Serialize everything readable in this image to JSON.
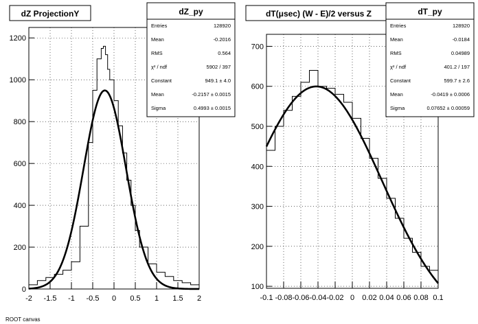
{
  "chart_data": [
    {
      "type": "line",
      "title": "dZ ProjectionY",
      "xlabel": "",
      "ylabel": "",
      "xlim": [
        -2,
        2
      ],
      "ylim": [
        0,
        1250
      ],
      "x_ticks": [
        "-2",
        "-1.5",
        "-1",
        "-0.5",
        "0",
        "0.5",
        "1",
        "1.5",
        "2"
      ],
      "y_ticks": [
        "0",
        "200",
        "400",
        "600",
        "800",
        "1000",
        "1200"
      ],
      "grid": true,
      "stats_box": {
        "name": "dZ_py",
        "rows": [
          {
            "label": "Entries",
            "value": "128920"
          },
          {
            "label": "Mean",
            "value": "-0.2016"
          },
          {
            "label": "RMS",
            "value": "0.564"
          },
          {
            "label": "χ² / ndf",
            "value": "5902 / 397"
          },
          {
            "label": "Constant",
            "value": "949.1 ± 4.0"
          },
          {
            "label": "Mean",
            "value": "-0.2157 ± 0.0015"
          },
          {
            "label": "Sigma",
            "value": "0.4993 ± 0.0015"
          }
        ]
      },
      "series": [
        {
          "kind": "histogram",
          "x": [
            -2.0,
            -1.8,
            -1.6,
            -1.4,
            -1.2,
            -1.0,
            -0.8,
            -0.6,
            -0.5,
            -0.4,
            -0.3,
            -0.25,
            -0.2,
            -0.15,
            -0.1,
            0.0,
            0.1,
            0.2,
            0.3,
            0.4,
            0.5,
            0.6,
            0.8,
            1.0,
            1.2,
            1.4,
            1.6,
            1.8,
            2.0
          ],
          "y": [
            20,
            40,
            55,
            70,
            90,
            130,
            300,
            700,
            950,
            1100,
            1150,
            1160,
            1120,
            1050,
            1000,
            900,
            780,
            650,
            520,
            400,
            280,
            200,
            120,
            80,
            60,
            40,
            30,
            20,
            15
          ]
        },
        {
          "kind": "gaussian-fit",
          "constant": 949.1,
          "mean": -0.2157,
          "sigma": 0.4993
        }
      ]
    },
    {
      "type": "line",
      "title": "dT(μsec) (W - E)/2 versus Z",
      "xlabel": "",
      "ylabel": "",
      "xlim": [
        -0.1,
        0.1
      ],
      "ylim": [
        95,
        730
      ],
      "x_ticks": [
        "-0.1",
        "-0.08",
        "-0.06",
        "-0.04",
        "-0.02",
        "0",
        "0.02",
        "0.04",
        "0.06",
        "0.08",
        "0.1"
      ],
      "y_ticks": [
        "100",
        "200",
        "300",
        "400",
        "500",
        "600",
        "700"
      ],
      "grid": true,
      "stats_box": {
        "name": "dT_py",
        "rows": [
          {
            "label": "Entries",
            "value": "128920"
          },
          {
            "label": "Mean",
            "value": "-0.0184"
          },
          {
            "label": "RMS",
            "value": "0.04989"
          },
          {
            "label": "χ² / ndf",
            "value": "401.2 / 197"
          },
          {
            "label": "Constant",
            "value": "599.7 ± 2.6"
          },
          {
            "label": "Mean",
            "value": "-0.0419 ± 0.0006"
          },
          {
            "label": "Sigma",
            "value": "0.07652 ± 0.00059"
          }
        ]
      },
      "series": [
        {
          "kind": "histogram",
          "x": [
            -0.1,
            -0.09,
            -0.08,
            -0.07,
            -0.06,
            -0.05,
            -0.04,
            -0.03,
            -0.02,
            -0.01,
            0.0,
            0.01,
            0.02,
            0.03,
            0.04,
            0.05,
            0.06,
            0.07,
            0.08,
            0.09,
            0.1
          ],
          "y": [
            440,
            500,
            540,
            575,
            610,
            640,
            600,
            595,
            580,
            560,
            520,
            470,
            420,
            370,
            320,
            270,
            220,
            185,
            150,
            140,
            105
          ]
        },
        {
          "kind": "gaussian-fit",
          "constant": 599.7,
          "mean": -0.0419,
          "sigma": 0.07652
        }
      ]
    }
  ],
  "footer_text": "ROOT canvas"
}
